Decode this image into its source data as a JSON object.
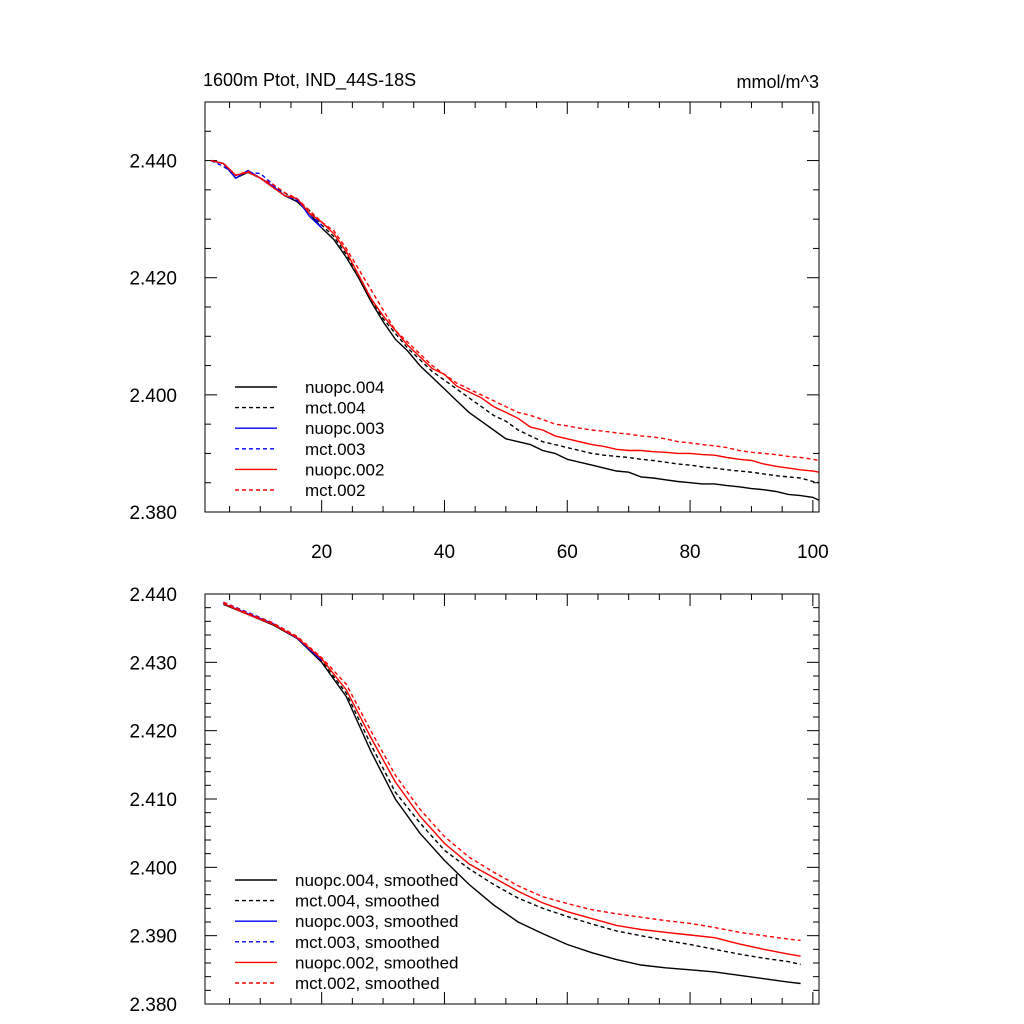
{
  "chart_data": [
    {
      "type": "line",
      "title": "1600m Ptot, IND_44S-18S",
      "units": "mmol/m^3",
      "xlim": [
        1,
        101
      ],
      "ylim": [
        2.38,
        2.45
      ],
      "xticks": [
        20,
        40,
        60,
        80,
        100
      ],
      "yticks": [
        2.38,
        2.4,
        2.42,
        2.44
      ],
      "ytick_labels": [
        "2.380",
        "2.400",
        "2.420",
        "2.440"
      ],
      "show_xtick_labels": true,
      "legend_position": "bottom-left",
      "series": [
        {
          "name": "nuopc.004",
          "color": "#000000",
          "dashed": false,
          "x": [
            2,
            4,
            6,
            8,
            10,
            12,
            14,
            16,
            18,
            20,
            22,
            24,
            26,
            28,
            30,
            32,
            34,
            36,
            38,
            40,
            42,
            44,
            46,
            48,
            50,
            52,
            54,
            56,
            58,
            60,
            62,
            64,
            66,
            68,
            70,
            72,
            74,
            76,
            78,
            80,
            82,
            84,
            86,
            88,
            90,
            92,
            94,
            96,
            98,
            100,
            101
          ],
          "values": [
            2.44,
            2.4395,
            2.437,
            2.438,
            2.437,
            2.4355,
            2.434,
            2.433,
            2.431,
            2.4285,
            2.4265,
            2.4235,
            2.42,
            2.416,
            2.4125,
            2.4095,
            2.4075,
            2.405,
            2.403,
            2.401,
            2.399,
            2.397,
            2.3955,
            2.394,
            2.3925,
            2.392,
            2.3915,
            2.3905,
            2.39,
            2.389,
            2.3885,
            2.388,
            2.3875,
            2.387,
            2.3868,
            2.386,
            2.3858,
            2.3855,
            2.3852,
            2.385,
            2.3848,
            2.3848,
            2.3845,
            2.3843,
            2.384,
            2.3838,
            2.3835,
            2.383,
            2.3828,
            2.3825,
            2.382
          ]
        },
        {
          "name": "mct.004",
          "color": "#000000",
          "dashed": true,
          "x": [
            2,
            4,
            6,
            8,
            10,
            12,
            14,
            16,
            18,
            20,
            22,
            24,
            26,
            28,
            30,
            32,
            34,
            36,
            38,
            40,
            42,
            44,
            46,
            48,
            50,
            52,
            54,
            56,
            58,
            60,
            62,
            64,
            66,
            68,
            70,
            72,
            74,
            76,
            78,
            80,
            82,
            84,
            86,
            88,
            90,
            92,
            94,
            96,
            98,
            100,
            101
          ],
          "values": [
            2.44,
            2.4395,
            2.4375,
            2.438,
            2.437,
            2.4355,
            2.4345,
            2.433,
            2.4315,
            2.429,
            2.427,
            2.424,
            2.4205,
            2.4165,
            2.413,
            2.4105,
            2.408,
            2.406,
            2.404,
            2.4025,
            2.401,
            2.3995,
            2.398,
            2.3965,
            2.3955,
            2.394,
            2.393,
            2.392,
            2.3915,
            2.391,
            2.3905,
            2.39,
            2.3897,
            2.3895,
            2.3893,
            2.389,
            2.3888,
            2.3885,
            2.3882,
            2.388,
            2.3877,
            2.3875,
            2.3872,
            2.387,
            2.3868,
            2.3865,
            2.3862,
            2.386,
            2.3858,
            2.3852,
            2.385
          ]
        },
        {
          "name": "nuopc.003",
          "color": "#0000ff",
          "dashed": false,
          "x": [
            2,
            4,
            6,
            8,
            10,
            12,
            14,
            16,
            18,
            20
          ],
          "values": [
            2.44,
            2.4395,
            2.437,
            2.4383,
            2.437,
            2.4357,
            2.434,
            2.4335,
            2.4305,
            2.4285
          ]
        },
        {
          "name": "mct.003",
          "color": "#0000ff",
          "dashed": true,
          "x": [
            2,
            4,
            6,
            8,
            10,
            12,
            14,
            16,
            18,
            20
          ],
          "values": [
            2.44,
            2.439,
            2.4375,
            2.438,
            2.4378,
            2.436,
            2.434,
            2.4332,
            2.431,
            2.429
          ]
        },
        {
          "name": "nuopc.002",
          "color": "#ff0000",
          "dashed": false,
          "x": [
            2,
            4,
            6,
            8,
            10,
            12,
            14,
            16,
            18,
            20,
            22,
            24,
            26,
            28,
            30,
            32,
            34,
            36,
            38,
            40,
            42,
            44,
            46,
            48,
            50,
            52,
            54,
            56,
            58,
            60,
            62,
            64,
            66,
            68,
            70,
            72,
            74,
            76,
            78,
            80,
            82,
            84,
            86,
            88,
            90,
            92,
            94,
            96,
            98,
            100,
            101
          ],
          "values": [
            2.44,
            2.4395,
            2.4375,
            2.438,
            2.437,
            2.4355,
            2.434,
            2.4335,
            2.431,
            2.4295,
            2.4275,
            2.4245,
            2.4205,
            2.4165,
            2.4135,
            2.411,
            2.4085,
            2.4065,
            2.4045,
            2.4035,
            2.4015,
            2.4005,
            2.3995,
            2.398,
            2.397,
            2.396,
            2.3945,
            2.394,
            2.393,
            2.3925,
            2.392,
            2.3915,
            2.3912,
            2.3907,
            2.3905,
            2.3905,
            2.3903,
            2.3902,
            2.39,
            2.39,
            2.3898,
            2.3897,
            2.3893,
            2.389,
            2.3888,
            2.3882,
            2.3878,
            2.3875,
            2.3872,
            2.387,
            2.3868
          ]
        },
        {
          "name": "mct.002",
          "color": "#ff0000",
          "dashed": true,
          "x": [
            2,
            4,
            6,
            8,
            10,
            12,
            14,
            16,
            18,
            20,
            22,
            24,
            26,
            28,
            30,
            32,
            34,
            36,
            38,
            40,
            42,
            44,
            46,
            48,
            50,
            52,
            54,
            56,
            58,
            60,
            62,
            64,
            66,
            68,
            70,
            72,
            74,
            76,
            78,
            80,
            82,
            84,
            86,
            88,
            90,
            92,
            94,
            96,
            98,
            100,
            101
          ],
          "values": [
            2.44,
            2.4395,
            2.4375,
            2.4382,
            2.437,
            2.436,
            2.4345,
            2.4335,
            2.4315,
            2.4295,
            2.428,
            2.425,
            2.4215,
            2.418,
            2.4145,
            2.411,
            2.409,
            2.407,
            2.405,
            2.4035,
            2.402,
            2.401,
            2.4,
            2.399,
            2.398,
            2.397,
            2.3965,
            2.3958,
            2.395,
            2.3947,
            2.3943,
            2.394,
            2.3938,
            2.3935,
            2.3933,
            2.393,
            2.3928,
            2.3925,
            2.392,
            2.3918,
            2.3915,
            2.3913,
            2.391,
            2.3905,
            2.3902,
            2.39,
            2.3898,
            2.3895,
            2.3893,
            2.389,
            2.3888
          ]
        }
      ]
    },
    {
      "type": "line",
      "xlim": [
        1,
        101
      ],
      "ylim": [
        2.38,
        2.44
      ],
      "xticks": [
        20,
        40,
        60,
        80,
        100
      ],
      "yticks": [
        2.38,
        2.39,
        2.4,
        2.41,
        2.42,
        2.43,
        2.44
      ],
      "ytick_labels": [
        "2.380",
        "2.390",
        "2.400",
        "2.410",
        "2.420",
        "2.430",
        "2.440"
      ],
      "show_xtick_labels": false,
      "legend_position": "bottom-left",
      "series": [
        {
          "name": "nuopc.004, smoothed",
          "color": "#000000",
          "dashed": false,
          "x": [
            4,
            8,
            12,
            16,
            20,
            24,
            28,
            32,
            36,
            40,
            44,
            48,
            52,
            56,
            60,
            64,
            68,
            72,
            76,
            80,
            84,
            88,
            92,
            96,
            98
          ],
          "values": [
            2.4385,
            2.437,
            2.4355,
            2.4335,
            2.43,
            2.425,
            2.417,
            2.41,
            2.405,
            2.401,
            2.3975,
            2.3945,
            2.392,
            2.3903,
            2.3887,
            2.3875,
            2.3865,
            2.3857,
            2.3853,
            2.385,
            2.3847,
            2.3842,
            2.3837,
            2.3832,
            2.383
          ]
        },
        {
          "name": "mct.004, smoothed",
          "color": "#000000",
          "dashed": true,
          "x": [
            4,
            8,
            12,
            16,
            20,
            24,
            28,
            32,
            36,
            40,
            44,
            48,
            52,
            56,
            60,
            64,
            68,
            72,
            76,
            80,
            84,
            88,
            92,
            96,
            98
          ],
          "values": [
            2.4387,
            2.4372,
            2.4357,
            2.4337,
            2.4302,
            2.4255,
            2.418,
            2.411,
            2.4065,
            2.4025,
            2.3998,
            2.3975,
            2.3955,
            2.394,
            2.3928,
            2.3917,
            2.3907,
            2.39,
            2.3893,
            2.3887,
            2.388,
            2.3873,
            2.3867,
            2.3862,
            2.3858
          ]
        },
        {
          "name": "nuopc.003, smoothed",
          "color": "#0000ff",
          "dashed": false,
          "x": [
            4,
            8,
            12,
            16,
            20
          ],
          "values": [
            2.4386,
            2.4371,
            2.4357,
            2.4335,
            2.4303
          ]
        },
        {
          "name": "mct.003, smoothed",
          "color": "#0000ff",
          "dashed": true,
          "x": [
            4,
            8,
            12,
            16,
            20
          ],
          "values": [
            2.4388,
            2.4373,
            2.4358,
            2.4336,
            2.4304
          ]
        },
        {
          "name": "nuopc.002, smoothed",
          "color": "#ff0000",
          "dashed": false,
          "x": [
            4,
            8,
            12,
            16,
            20,
            24,
            28,
            32,
            36,
            40,
            44,
            48,
            52,
            56,
            60,
            64,
            68,
            72,
            76,
            80,
            84,
            88,
            92,
            96,
            98
          ],
          "values": [
            2.4386,
            2.437,
            2.4356,
            2.4336,
            2.4305,
            2.426,
            2.419,
            2.4125,
            2.4075,
            2.4035,
            2.4005,
            2.3985,
            2.3965,
            2.3948,
            2.3935,
            2.3925,
            2.3915,
            2.3909,
            2.3905,
            2.3901,
            2.3897,
            2.3888,
            2.388,
            2.3873,
            2.387
          ]
        },
        {
          "name": "mct.002, smoothed",
          "color": "#ff0000",
          "dashed": true,
          "x": [
            4,
            8,
            12,
            16,
            20,
            24,
            28,
            32,
            36,
            40,
            44,
            48,
            52,
            56,
            60,
            64,
            68,
            72,
            76,
            80,
            84,
            88,
            92,
            96,
            98
          ],
          "values": [
            2.4388,
            2.4372,
            2.4358,
            2.4338,
            2.4307,
            2.4268,
            2.42,
            2.4135,
            2.4085,
            2.4045,
            2.4015,
            2.3993,
            2.3973,
            2.3957,
            2.3947,
            2.3938,
            2.3932,
            2.3927,
            2.3922,
            2.3918,
            2.3912,
            2.3905,
            2.39,
            2.3895,
            2.3893
          ]
        }
      ]
    }
  ]
}
